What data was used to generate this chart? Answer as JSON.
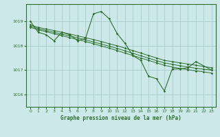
{
  "title": "Graphe pression niveau de la mer (hPa)",
  "bg_color": "#cce8e8",
  "grid_color": "#aacccc",
  "line_color": "#2d6e2d",
  "ylim": [
    1015.5,
    1019.7
  ],
  "yticks": [
    1016,
    1017,
    1018,
    1019
  ],
  "xlim": [
    -0.5,
    23.5
  ],
  "xticks": [
    0,
    1,
    2,
    3,
    4,
    5,
    6,
    7,
    8,
    9,
    10,
    11,
    12,
    13,
    14,
    15,
    16,
    17,
    18,
    19,
    20,
    21,
    22,
    23
  ],
  "jagged_x": [
    0,
    1,
    2,
    3,
    4,
    5,
    6,
    7,
    8,
    9,
    10,
    11,
    12,
    13,
    14,
    15,
    16,
    17,
    18,
    19,
    20,
    21,
    23
  ],
  "jagged_y": [
    1019.0,
    1018.55,
    1018.45,
    1018.2,
    1018.55,
    1018.45,
    1018.2,
    1018.3,
    1019.3,
    1019.4,
    1019.1,
    1018.5,
    1018.1,
    1017.6,
    1017.4,
    1016.75,
    1016.65,
    1016.15,
    1017.05,
    1017.05,
    1017.1,
    1017.35,
    1017.0
  ],
  "smooth1_x": [
    0,
    1,
    2,
    3,
    4,
    5,
    6,
    7,
    8,
    9,
    10,
    11,
    12,
    13,
    14,
    15,
    16,
    17,
    18,
    19,
    20,
    21,
    22,
    23
  ],
  "smooth1_y": [
    1018.85,
    1018.75,
    1018.68,
    1018.62,
    1018.55,
    1018.48,
    1018.4,
    1018.33,
    1018.25,
    1018.17,
    1018.08,
    1018.0,
    1017.9,
    1017.8,
    1017.7,
    1017.6,
    1017.5,
    1017.4,
    1017.35,
    1017.3,
    1017.25,
    1017.2,
    1017.15,
    1017.1
  ],
  "smooth2_x": [
    0,
    1,
    2,
    3,
    4,
    5,
    6,
    7,
    8,
    9,
    10,
    11,
    12,
    13,
    14,
    15,
    16,
    17,
    18,
    19,
    20,
    21,
    22,
    23
  ],
  "smooth2_y": [
    1018.8,
    1018.7,
    1018.62,
    1018.55,
    1018.47,
    1018.4,
    1018.32,
    1018.24,
    1018.15,
    1018.07,
    1017.98,
    1017.89,
    1017.79,
    1017.69,
    1017.59,
    1017.49,
    1017.39,
    1017.3,
    1017.24,
    1017.18,
    1017.13,
    1017.08,
    1017.04,
    1017.0
  ],
  "smooth3_x": [
    0,
    1,
    2,
    3,
    4,
    5,
    6,
    7,
    8,
    9,
    10,
    11,
    12,
    13,
    14,
    15,
    16,
    17,
    18,
    19,
    20,
    21,
    22,
    23
  ],
  "smooth3_y": [
    1018.75,
    1018.65,
    1018.57,
    1018.49,
    1018.41,
    1018.33,
    1018.25,
    1018.17,
    1018.08,
    1017.99,
    1017.9,
    1017.8,
    1017.7,
    1017.6,
    1017.5,
    1017.4,
    1017.3,
    1017.2,
    1017.13,
    1017.07,
    1017.02,
    1016.97,
    1016.93,
    1016.88
  ]
}
